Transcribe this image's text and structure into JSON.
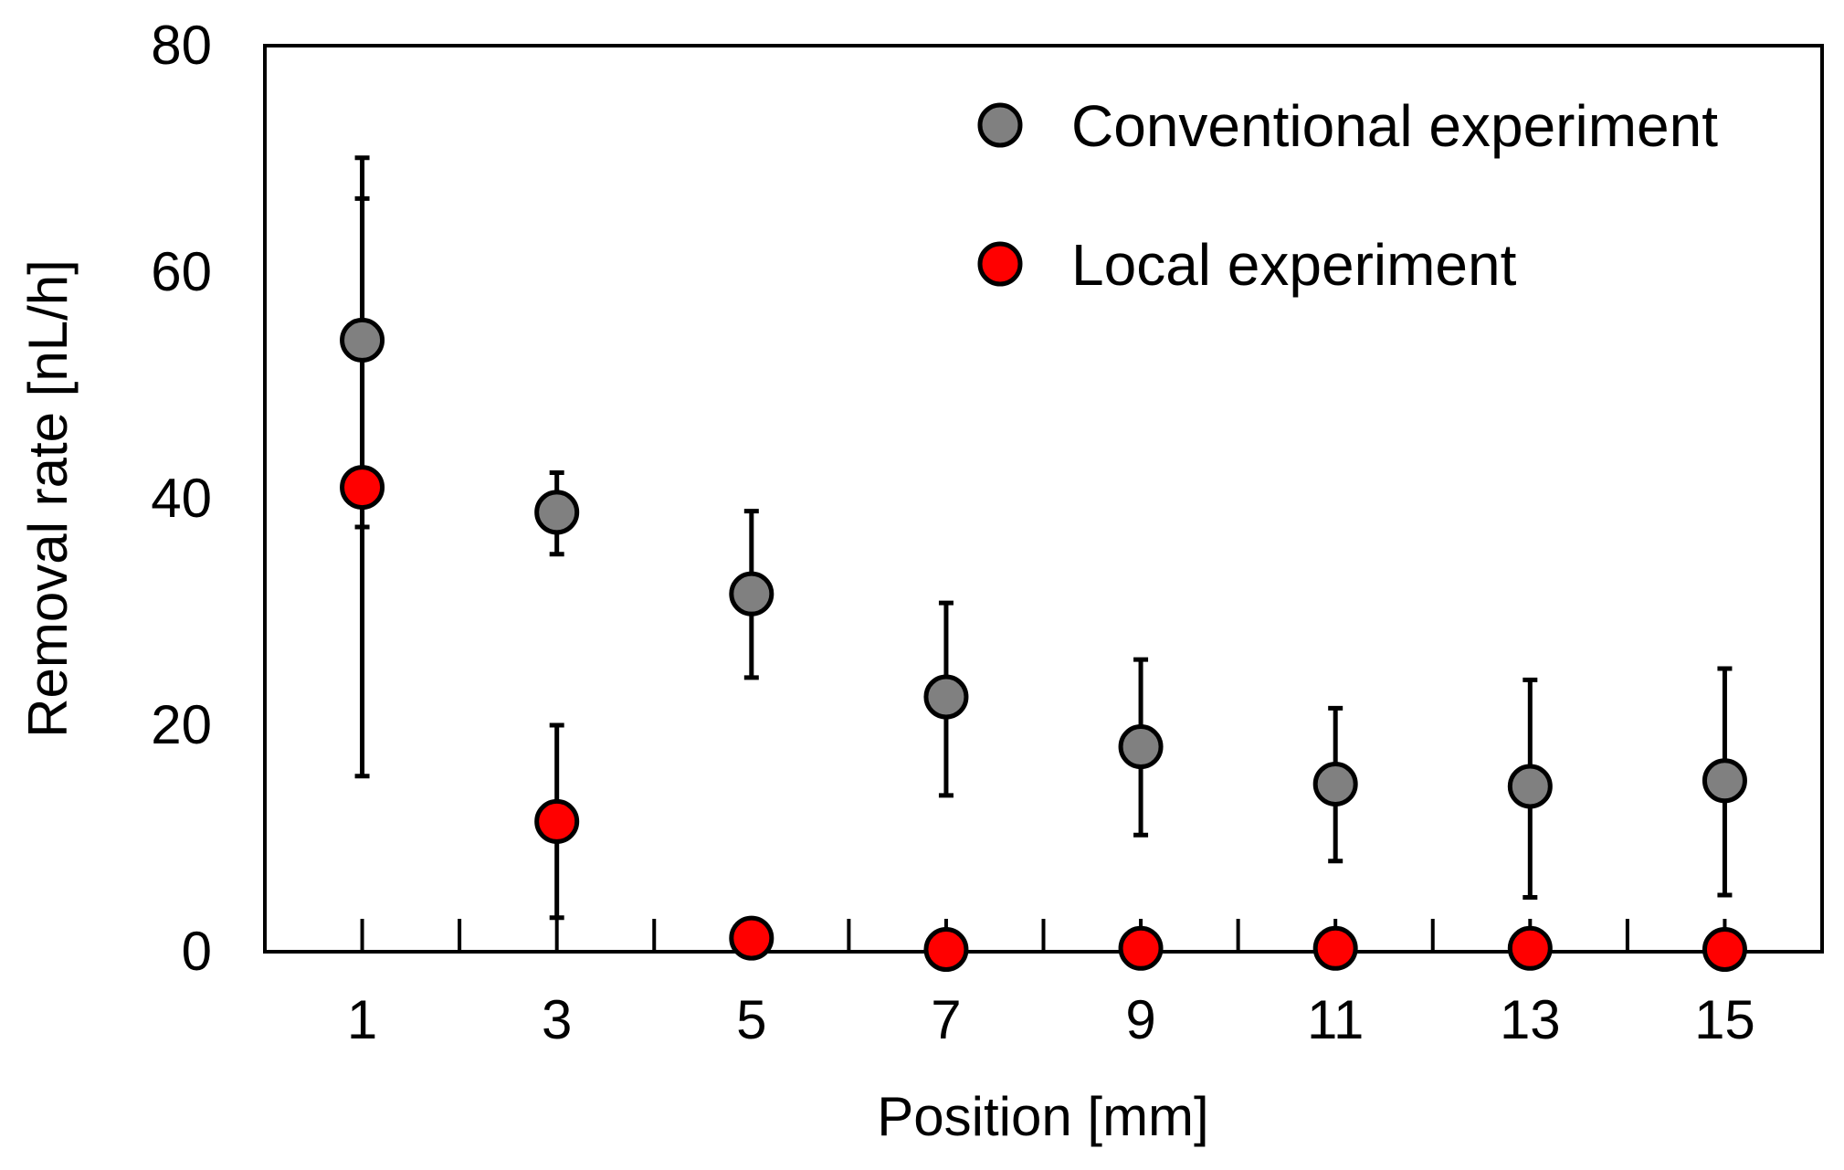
{
  "chart_data": {
    "type": "scatter",
    "xlabel": "Position [mm]",
    "ylabel": "Removal rate [nL/h]",
    "x": [
      1,
      3,
      5,
      7,
      9,
      11,
      13,
      15
    ],
    "x_tick_labels": [
      "1",
      "3",
      "5",
      "7",
      "9",
      "11",
      "13",
      "15"
    ],
    "xlim": [
      0,
      16
    ],
    "ylim": [
      0,
      80
    ],
    "y_ticks": [
      0,
      20,
      40,
      60,
      80
    ],
    "y_tick_labels": [
      "0",
      "20",
      "40",
      "60",
      "80"
    ],
    "grid": false,
    "legend_position": "top-right",
    "series": [
      {
        "name": "Conventional experiment",
        "color": "#808080",
        "values": [
          54,
          38.8,
          31.6,
          22.5,
          18.1,
          14.8,
          14.6,
          15.1
        ],
        "err_low": [
          15.5,
          35.1,
          24.2,
          13.8,
          10.3,
          8.0,
          4.8,
          5.0
        ],
        "err_high": [
          70.1,
          42.3,
          38.9,
          30.8,
          25.8,
          21.5,
          24.0,
          25.0
        ]
      },
      {
        "name": "Local experiment",
        "color": "#ff0000",
        "values": [
          41,
          11.5,
          1.2,
          0.2,
          0.3,
          0.3,
          0.3,
          0.2
        ],
        "err_low": [
          37.5,
          3.0,
          1.2,
          0.2,
          0.3,
          0.3,
          0.3,
          0.2
        ],
        "err_high": [
          66.5,
          20.0,
          1.2,
          0.2,
          0.3,
          0.3,
          0.3,
          0.2
        ]
      }
    ]
  }
}
